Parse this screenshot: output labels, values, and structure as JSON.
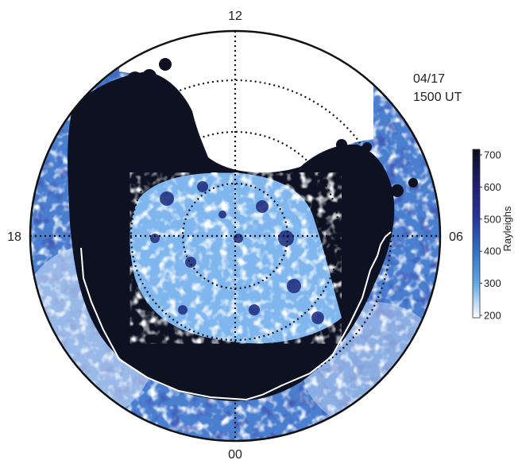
{
  "plot": {
    "date": "04/17",
    "time": "1500 UT",
    "mlt_labels": {
      "top": "12",
      "bottom": "00",
      "left": "18",
      "right": "06"
    },
    "latitude_rings": 3,
    "ring_style": "dotted",
    "oval_boundary_color": "#ffffff",
    "emission_core_color": "#0d1121"
  },
  "colorbar": {
    "label": "Rayleighs",
    "min": 200,
    "max": 700,
    "ticks": [
      "700",
      "600",
      "500",
      "400",
      "300",
      "200"
    ],
    "colors": [
      "#0a0d1a",
      "#1f1f6e",
      "#26329a",
      "#2f6fc4",
      "#66a8e6",
      "#ffffff"
    ]
  }
}
